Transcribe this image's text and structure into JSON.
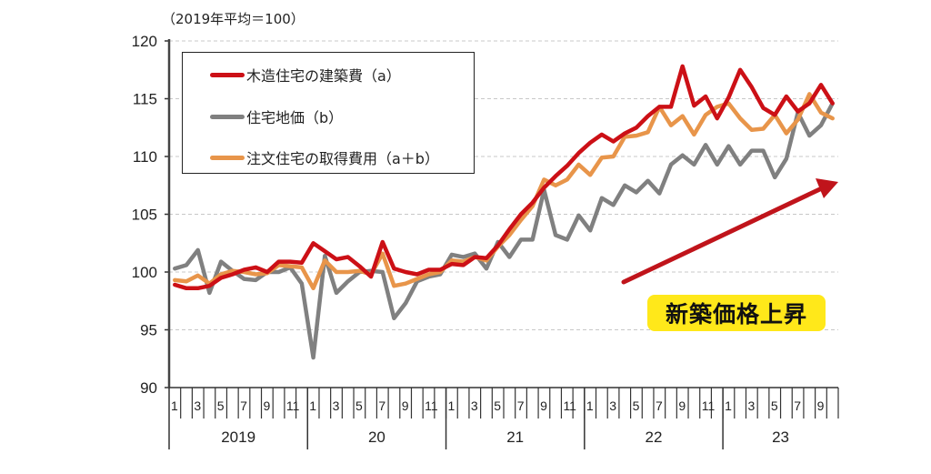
{
  "chart_data": {
    "type": "line",
    "unit_label": "（2019年平均＝100）",
    "ylim": [
      90,
      120
    ],
    "yticks": [
      90,
      95,
      100,
      105,
      110,
      115,
      120
    ],
    "grid": true,
    "legend_position": "top-left",
    "month_tick_labels": [
      "1",
      "3",
      "5",
      "7",
      "9",
      "11"
    ],
    "years": [
      {
        "label": "2019",
        "months": 12
      },
      {
        "label": "20",
        "months": 12
      },
      {
        "label": "21",
        "months": 12
      },
      {
        "label": "22",
        "months": 12
      },
      {
        "label": "23",
        "months": 10
      }
    ],
    "series": [
      {
        "name": "木造住宅の建築費（a）",
        "color": "#cc1016",
        "values": [
          98.9,
          98.6,
          98.6,
          98.8,
          99.5,
          99.8,
          100.2,
          100.4,
          100.0,
          100.9,
          100.9,
          100.8,
          102.5,
          101.8,
          101.1,
          101.3,
          100.5,
          99.6,
          102.6,
          100.3,
          100.0,
          99.8,
          100.2,
          100.2,
          100.7,
          100.6,
          101.3,
          101.2,
          102.3,
          103.7,
          105.0,
          106.0,
          107.3,
          108.3,
          109.2,
          110.3,
          111.2,
          111.9,
          111.3,
          112.0,
          112.5,
          113.5,
          114.3,
          114.3,
          117.8,
          114.4,
          115.2,
          113.3,
          115.1,
          117.5,
          116.0,
          114.2,
          113.6,
          115.2,
          113.9,
          114.6,
          116.2,
          114.6
        ]
      },
      {
        "name": "住宅地価（b）",
        "color": "#808080",
        "values": [
          100.3,
          100.6,
          101.9,
          98.2,
          100.9,
          100.1,
          99.4,
          99.3,
          100.0,
          100.0,
          100.4,
          99.0,
          92.6,
          101.4,
          98.2,
          99.2,
          100.0,
          100.1,
          100.0,
          96.0,
          97.3,
          99.2,
          99.6,
          99.8,
          101.5,
          101.3,
          101.6,
          100.3,
          102.6,
          101.3,
          102.8,
          102.8,
          107.1,
          103.2,
          102.8,
          104.9,
          103.6,
          106.4,
          105.8,
          107.5,
          106.9,
          107.9,
          106.8,
          109.3,
          110.1,
          109.3,
          111.0,
          109.3,
          110.9,
          109.3,
          110.5,
          110.5,
          108.2,
          109.8,
          113.8,
          111.8,
          112.7,
          114.6
        ]
      },
      {
        "name": "注文住宅の取得費用（a＋b）",
        "color": "#e8954a",
        "values": [
          99.3,
          99.2,
          99.7,
          99.0,
          99.8,
          100.1,
          100.0,
          99.8,
          99.9,
          100.6,
          100.5,
          100.4,
          98.6,
          101.0,
          100.0,
          100.0,
          100.1,
          99.8,
          101.6,
          98.8,
          99.0,
          99.4,
          99.8,
          100.0,
          101.0,
          100.9,
          101.3,
          101.0,
          102.2,
          103.2,
          104.5,
          105.7,
          108.0,
          107.5,
          108.0,
          109.3,
          108.4,
          109.9,
          110.0,
          111.7,
          111.8,
          112.1,
          114.3,
          112.7,
          113.5,
          111.9,
          113.6,
          114.3,
          114.6,
          113.3,
          112.3,
          112.4,
          113.6,
          112.0,
          113.2,
          115.4,
          113.8,
          113.3
        ]
      }
    ],
    "annotation": "新築価格上昇"
  }
}
